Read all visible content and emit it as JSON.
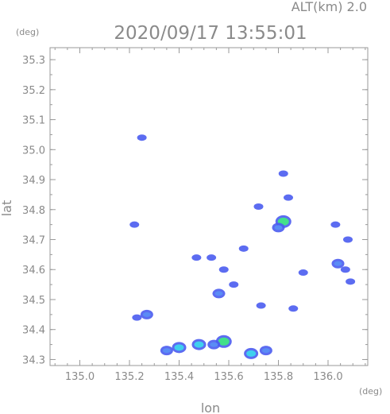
{
  "header": {
    "altitude": "ALT(km) 2.0",
    "timestamp": "2020/09/17 13:55:01"
  },
  "chart_data": {
    "type": "heatmap",
    "title": "2020/09/17 13:55:01",
    "subtitle": "ALT(km) 2.0",
    "xlabel": "lon",
    "ylabel": "lat",
    "x_unit": "(deg)",
    "y_unit": "(deg)",
    "xlim": [
      134.88,
      136.16
    ],
    "ylim": [
      34.28,
      35.34
    ],
    "x_ticks": [
      135.0,
      135.2,
      135.4,
      135.6,
      135.8,
      136.0
    ],
    "x_tick_labels": [
      "135.0",
      "135.2",
      "135.4",
      "135.6",
      "135.8",
      "136.0"
    ],
    "y_ticks": [
      34.3,
      34.4,
      34.5,
      34.6,
      34.7,
      34.8,
      34.9,
      35.0,
      35.1,
      35.2,
      35.3
    ],
    "y_tick_labels": [
      "34.3",
      "34.4",
      "34.5",
      "34.6",
      "34.7",
      "34.8",
      "34.9",
      "35.0",
      "35.1",
      "35.2",
      "35.3"
    ],
    "grid": false,
    "colors": {
      "weak": "#4a5cf0",
      "light": "#5a8cf5",
      "moderate": "#3fd0ee",
      "strong": "#42e08a"
    },
    "echoes": [
      {
        "lon": 135.25,
        "lat": 35.04,
        "intensity": 1
      },
      {
        "lon": 135.22,
        "lat": 34.75,
        "intensity": 1
      },
      {
        "lon": 135.27,
        "lat": 34.45,
        "intensity": 2
      },
      {
        "lon": 135.23,
        "lat": 34.44,
        "intensity": 1
      },
      {
        "lon": 135.4,
        "lat": 34.34,
        "intensity": 3
      },
      {
        "lon": 135.48,
        "lat": 34.35,
        "intensity": 3
      },
      {
        "lon": 135.35,
        "lat": 34.33,
        "intensity": 2
      },
      {
        "lon": 135.58,
        "lat": 34.36,
        "intensity": 4
      },
      {
        "lon": 135.54,
        "lat": 34.35,
        "intensity": 2
      },
      {
        "lon": 135.69,
        "lat": 34.32,
        "intensity": 3
      },
      {
        "lon": 135.75,
        "lat": 34.33,
        "intensity": 2
      },
      {
        "lon": 135.58,
        "lat": 34.6,
        "intensity": 1
      },
      {
        "lon": 135.56,
        "lat": 34.52,
        "intensity": 2
      },
      {
        "lon": 135.53,
        "lat": 34.64,
        "intensity": 1
      },
      {
        "lon": 135.62,
        "lat": 34.55,
        "intensity": 1
      },
      {
        "lon": 135.66,
        "lat": 34.67,
        "intensity": 1
      },
      {
        "lon": 135.73,
        "lat": 34.48,
        "intensity": 1
      },
      {
        "lon": 135.47,
        "lat": 34.64,
        "intensity": 1
      },
      {
        "lon": 135.82,
        "lat": 34.76,
        "intensity": 4
      },
      {
        "lon": 135.8,
        "lat": 34.74,
        "intensity": 2
      },
      {
        "lon": 135.84,
        "lat": 34.84,
        "intensity": 1
      },
      {
        "lon": 135.82,
        "lat": 34.92,
        "intensity": 1
      },
      {
        "lon": 135.72,
        "lat": 34.81,
        "intensity": 1
      },
      {
        "lon": 135.9,
        "lat": 34.59,
        "intensity": 1
      },
      {
        "lon": 135.86,
        "lat": 34.47,
        "intensity": 1
      },
      {
        "lon": 136.04,
        "lat": 34.62,
        "intensity": 2
      },
      {
        "lon": 136.07,
        "lat": 34.6,
        "intensity": 1
      },
      {
        "lon": 136.09,
        "lat": 34.56,
        "intensity": 1
      },
      {
        "lon": 136.08,
        "lat": 34.7,
        "intensity": 1
      },
      {
        "lon": 136.03,
        "lat": 34.75,
        "intensity": 1
      }
    ]
  }
}
